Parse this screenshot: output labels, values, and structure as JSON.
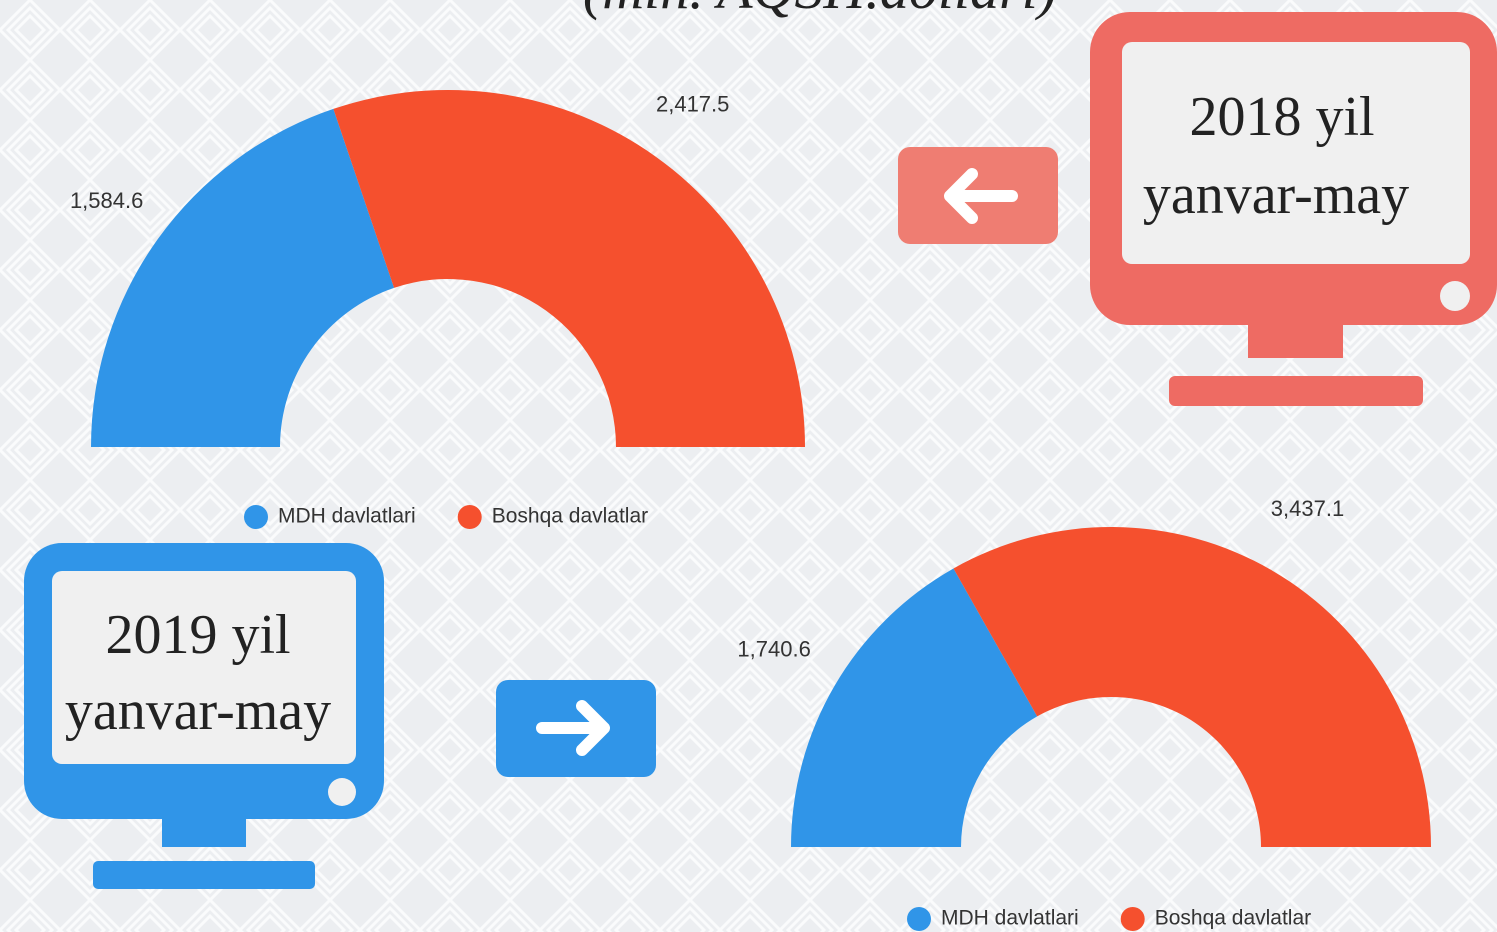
{
  "title": "(mln. AQSH.dollari)",
  "chart_data": [
    {
      "type": "semidonut",
      "title": "2018 yil",
      "subtitle": "yanvar-may",
      "categories": [
        "MDH davlatlari",
        "Boshqa davlatlar"
      ],
      "values": [
        1584.6,
        2417.5
      ],
      "value_labels": [
        "1,584.6",
        "2,417.5"
      ],
      "colors": [
        "#3095e8",
        "#f5502e"
      ],
      "legend": "bottom"
    },
    {
      "type": "semidonut",
      "title": "2019 yil",
      "subtitle": "yanvar-may",
      "categories": [
        "MDH davlatlari",
        "Boshqa davlatlar"
      ],
      "values": [
        1740.6,
        3437.1
      ],
      "value_labels": [
        "1,740.6",
        "3,437.1"
      ],
      "colors": [
        "#3095e8",
        "#f5502e"
      ],
      "legend": "bottom"
    }
  ]
}
